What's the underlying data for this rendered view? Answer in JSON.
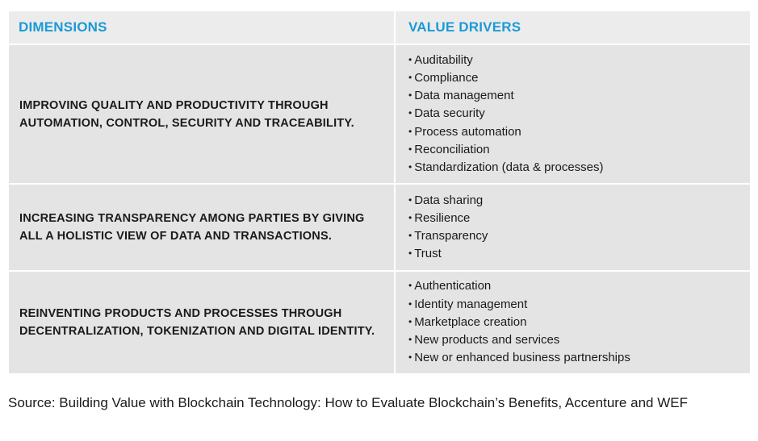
{
  "table": {
    "header": {
      "dimensions": "DIMENSIONS",
      "value_drivers": "VALUE DRIVERS"
    },
    "rows": [
      {
        "dimension": "IMPROVING QUALITY AND PRODUCTIVITY THROUGH AUTOMATION, CONTROL, SECURITY AND TRACEABILITY.",
        "drivers": [
          "Auditability",
          "Compliance",
          "Data management",
          "Data security",
          "Process automation",
          "Reconciliation",
          "Standardization (data & processes)"
        ]
      },
      {
        "dimension": "INCREASING TRANSPARENCY AMONG PARTIES BY GIVING ALL A HOLISTIC VIEW OF DATA AND TRANSACTIONS.",
        "drivers": [
          "Data sharing",
          "Resilience",
          "Transparency",
          "Trust"
        ]
      },
      {
        "dimension": "REINVENTING PRODUCTS AND PROCESSES THROUGH DECENTRALIZATION, TOKENIZATION AND DIGITAL IDENTITY.",
        "drivers": [
          "Authentication",
          "Identity management",
          "Marketplace creation",
          "New products and services",
          "New or enhanced business partnerships"
        ]
      }
    ]
  },
  "source": "Source: Building Value with Blockchain Technology: How to Evaluate Blockchain’s Benefits, Accenture and WEF",
  "colors": {
    "header_text": "#1b9ad6",
    "cell_background": "#e4e4e4"
  }
}
